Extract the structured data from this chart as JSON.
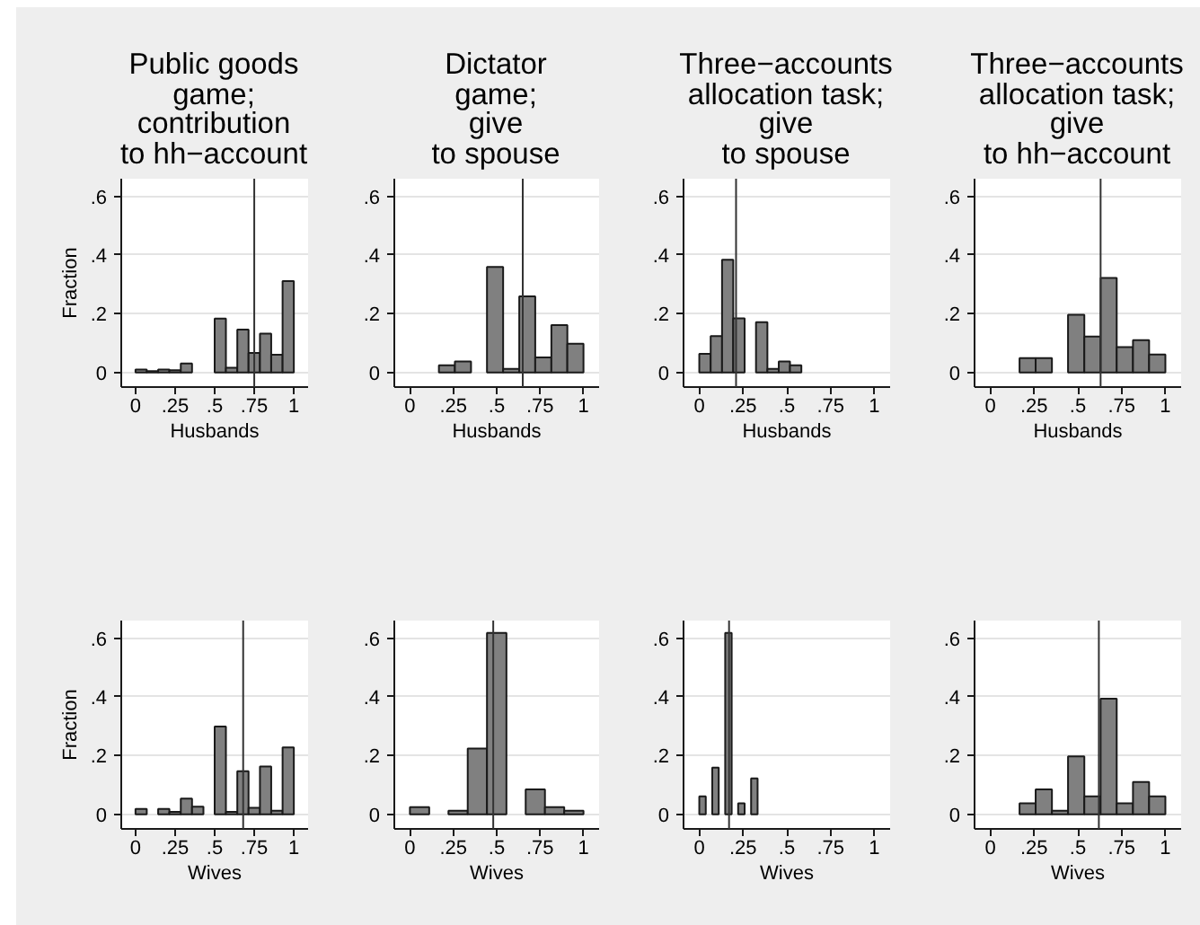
{
  "chart_data": [
    {
      "type": "histogram",
      "title": "Public goods\ngame;\ncontribution\nto hh−account",
      "xlabel": "Husbands",
      "ylabel": "Fraction",
      "bins": [
        0,
        0.071,
        0.143,
        0.214,
        0.286,
        0.357,
        0.429,
        0.5,
        0.571,
        0.643,
        0.714,
        0.786,
        0.857,
        0.929,
        1
      ],
      "values": [
        0.01,
        0.004,
        0.01,
        0.007,
        0.03,
        0,
        0,
        0.183,
        0.016,
        0.146,
        0.066,
        0.132,
        0.06,
        0.311
      ],
      "color": "#808080",
      "xlim": [
        -0.09,
        1.09
      ],
      "ylim": [
        -0.05,
        0.66
      ],
      "xticks": [
        0,
        {
          "value": 0.25,
          "label": ".25"
        },
        {
          "value": 0.5,
          "label": ".5"
        },
        {
          "value": 0.75,
          "label": ".75"
        },
        1
      ],
      "yticks": [
        0,
        {
          "value": 0.2,
          "label": ".2"
        },
        {
          "value": 0.4,
          "label": ".4"
        },
        {
          "value": 0.6,
          "label": ".6"
        }
      ],
      "grid": "y",
      "ref_lines": [
        {
          "axis": "x",
          "value": 0.75,
          "color": "#333333"
        }
      ]
    },
    {
      "type": "histogram",
      "title": "Dictator\ngame;\ngive\nto spouse",
      "xlabel": "Husbands",
      "bins": [
        0.167,
        0.259,
        0.352,
        0.444,
        0.537,
        0.63,
        0.722,
        0.815,
        0.907,
        1
      ],
      "values": [
        0.024,
        0.037,
        0,
        0.359,
        0.012,
        0.259,
        0.051,
        0.161,
        0.098
      ],
      "color": "#808080",
      "xlim": [
        -0.09,
        1.09
      ],
      "ylim": [
        -0.05,
        0.66
      ],
      "xticks": [
        0,
        {
          "value": 0.25,
          "label": ".25"
        },
        {
          "value": 0.5,
          "label": ".5"
        },
        {
          "value": 0.75,
          "label": ".75"
        },
        1
      ],
      "yticks": [
        0,
        {
          "value": 0.2,
          "label": ".2"
        },
        {
          "value": 0.4,
          "label": ".4"
        },
        {
          "value": 0.6,
          "label": ".6"
        }
      ],
      "grid": "y",
      "ref_lines": [
        {
          "axis": "x",
          "value": 0.65,
          "color": "#333333"
        }
      ]
    },
    {
      "type": "histogram",
      "title": "Three−accounts\nallocation task;\ngive\nto spouse",
      "xlabel": "Husbands",
      "bins": [
        0,
        0.065,
        0.13,
        0.194,
        0.259,
        0.324,
        0.389,
        0.454,
        0.518,
        0.583
      ],
      "values": [
        0.063,
        0.124,
        0.384,
        0.184,
        0,
        0.171,
        0.012,
        0.037,
        0.024
      ],
      "color": "#808080",
      "xlim": [
        -0.09,
        1.09
      ],
      "ylim": [
        -0.05,
        0.66
      ],
      "xticks": [
        0,
        {
          "value": 0.25,
          "label": ".25"
        },
        {
          "value": 0.5,
          "label": ".5"
        },
        {
          "value": 0.75,
          "label": ".75"
        },
        1
      ],
      "yticks": [
        0,
        {
          "value": 0.2,
          "label": ".2"
        },
        {
          "value": 0.4,
          "label": ".4"
        },
        {
          "value": 0.6,
          "label": ".6"
        }
      ],
      "grid": "y",
      "ref_lines": [
        {
          "axis": "x",
          "value": 0.21,
          "color": "#333333"
        }
      ]
    },
    {
      "type": "histogram",
      "title": "Three−accounts\nallocation task;\ngive\nto hh−account",
      "xlabel": "Husbands",
      "bins": [
        0.167,
        0.259,
        0.352,
        0.444,
        0.537,
        0.63,
        0.722,
        0.815,
        0.907,
        1
      ],
      "values": [
        0.049,
        0.049,
        0,
        0.196,
        0.122,
        0.322,
        0.086,
        0.11,
        0.061
      ],
      "color": "#808080",
      "xlim": [
        -0.09,
        1.09
      ],
      "ylim": [
        -0.05,
        0.66
      ],
      "xticks": [
        0,
        {
          "value": 0.25,
          "label": ".25"
        },
        {
          "value": 0.5,
          "label": ".5"
        },
        {
          "value": 0.75,
          "label": ".75"
        },
        1
      ],
      "yticks": [
        0,
        {
          "value": 0.2,
          "label": ".2"
        },
        {
          "value": 0.4,
          "label": ".4"
        },
        {
          "value": 0.6,
          "label": ".6"
        }
      ],
      "grid": "y",
      "ref_lines": [
        {
          "axis": "x",
          "value": 0.63,
          "color": "#333333"
        }
      ]
    },
    {
      "type": "histogram",
      "xlabel": "Wives",
      "ylabel": "Fraction",
      "bins": [
        0,
        0.071,
        0.143,
        0.214,
        0.286,
        0.357,
        0.429,
        0.5,
        0.571,
        0.643,
        0.714,
        0.786,
        0.857,
        0.929,
        1
      ],
      "values": [
        0.018,
        0,
        0.018,
        0.008,
        0.053,
        0.026,
        0,
        0.299,
        0.008,
        0.147,
        0.022,
        0.163,
        0.012,
        0.228
      ],
      "color": "#808080",
      "xlim": [
        -0.09,
        1.09
      ],
      "ylim": [
        -0.05,
        0.66
      ],
      "xticks": [
        0,
        {
          "value": 0.25,
          "label": ".25"
        },
        {
          "value": 0.5,
          "label": ".5"
        },
        {
          "value": 0.75,
          "label": ".75"
        },
        1
      ],
      "yticks": [
        0,
        {
          "value": 0.2,
          "label": ".2"
        },
        {
          "value": 0.4,
          "label": ".4"
        },
        {
          "value": 0.6,
          "label": ".6"
        }
      ],
      "grid": "y",
      "ref_lines": [
        {
          "axis": "x",
          "value": 0.68,
          "color": "#333333"
        }
      ]
    },
    {
      "type": "histogram",
      "xlabel": "Wives",
      "bins": [
        0,
        0.111,
        0.222,
        0.333,
        0.444,
        0.556,
        0.667,
        0.778,
        0.889,
        1
      ],
      "values": [
        0.024,
        0,
        0.012,
        0.224,
        0.618,
        0,
        0.085,
        0.024,
        0.012
      ],
      "color": "#808080",
      "xlim": [
        -0.09,
        1.09
      ],
      "ylim": [
        -0.05,
        0.66
      ],
      "xticks": [
        0,
        {
          "value": 0.25,
          "label": ".25"
        },
        {
          "value": 0.5,
          "label": ".5"
        },
        {
          "value": 0.75,
          "label": ".75"
        },
        1
      ],
      "yticks": [
        0,
        {
          "value": 0.2,
          "label": ".2"
        },
        {
          "value": 0.4,
          "label": ".4"
        },
        {
          "value": 0.6,
          "label": ".6"
        }
      ],
      "grid": "y",
      "ref_lines": [
        {
          "axis": "x",
          "value": 0.48,
          "color": "#333333"
        }
      ]
    },
    {
      "type": "histogram",
      "xlabel": "Wives",
      "bins": [
        0,
        0.037,
        0.074,
        0.111,
        0.148,
        0.185,
        0.222,
        0.259,
        0.296,
        0.333
      ],
      "values": [
        0.061,
        0,
        0.159,
        0,
        0.618,
        0,
        0.037,
        0,
        0.122
      ],
      "color": "#808080",
      "xlim": [
        -0.09,
        1.09
      ],
      "ylim": [
        -0.05,
        0.66
      ],
      "xticks": [
        0,
        {
          "value": 0.25,
          "label": ".25"
        },
        {
          "value": 0.5,
          "label": ".5"
        },
        {
          "value": 0.75,
          "label": ".75"
        },
        1
      ],
      "yticks": [
        0,
        {
          "value": 0.2,
          "label": ".2"
        },
        {
          "value": 0.4,
          "label": ".4"
        },
        {
          "value": 0.6,
          "label": ".6"
        }
      ],
      "grid": "y",
      "ref_lines": [
        {
          "axis": "x",
          "value": 0.17,
          "color": "#333333"
        }
      ]
    },
    {
      "type": "histogram",
      "xlabel": "Wives",
      "bins": [
        0.167,
        0.259,
        0.352,
        0.444,
        0.537,
        0.63,
        0.722,
        0.815,
        0.907,
        1
      ],
      "values": [
        0.037,
        0.085,
        0.012,
        0.197,
        0.061,
        0.394,
        0.037,
        0.11,
        0.061
      ],
      "color": "#808080",
      "xlim": [
        -0.09,
        1.09
      ],
      "ylim": [
        -0.05,
        0.66
      ],
      "xticks": [
        0,
        {
          "value": 0.25,
          "label": ".25"
        },
        {
          "value": 0.5,
          "label": ".5"
        },
        {
          "value": 0.75,
          "label": ".75"
        },
        1
      ],
      "yticks": [
        0,
        {
          "value": 0.2,
          "label": ".2"
        },
        {
          "value": 0.4,
          "label": ".4"
        },
        {
          "value": 0.6,
          "label": ".6"
        }
      ],
      "grid": "y",
      "ref_lines": [
        {
          "axis": "x",
          "value": 0.62,
          "color": "#333333"
        }
      ]
    }
  ]
}
